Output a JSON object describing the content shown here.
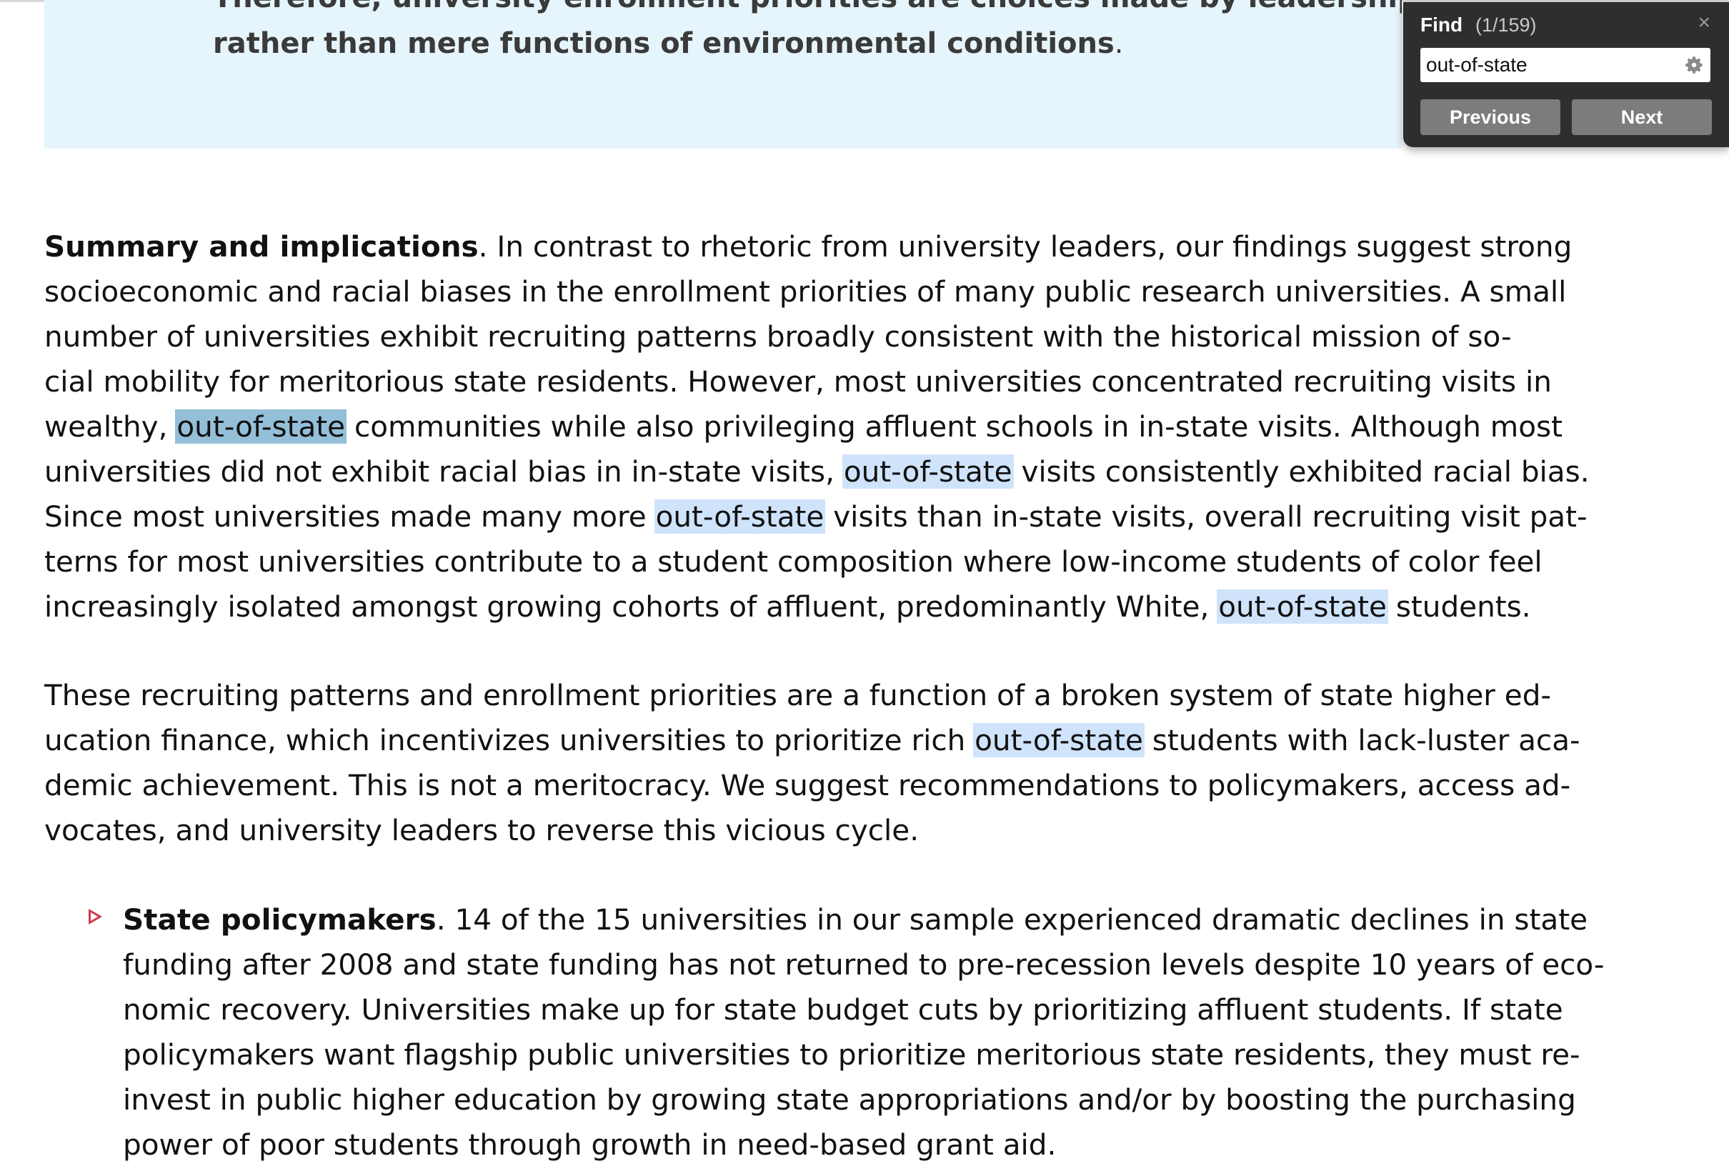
{
  "callout": {
    "line1": "Therefore, university enrollment priorities are choices made by leadership",
    "line2": "rather than mere functions of environmental conditions",
    "line2_end": "."
  },
  "paragraph1": {
    "heading": "Summary and implications",
    "lines": [
      [
        ". In contrast to rhetoric from university leaders, our findings suggest strong"
      ],
      [
        "socioeconomic and racial biases in the enrollment priorities of many public research universities. A small"
      ],
      [
        "number of universities exhibit recruiting patterns broadly consistent with the historical mission of so-"
      ],
      [
        "cial mobility for meritorious state residents. However, most universities concentrated recruiting visits in"
      ],
      [
        "wealthy, ",
        "out-of-state",
        " communities while also privileging affluent schools in in-state visits. Although most"
      ],
      [
        "universities did not exhibit racial bias in in-state visits, ",
        "out-of-state",
        " visits consistently exhibited racial bias."
      ],
      [
        "Since most universities made many more ",
        "out-of-state",
        " visits than in-state visits, overall recruiting visit pat-"
      ],
      [
        "terns for most universities contribute to a student composition where low-income students of color feel"
      ],
      [
        "increasingly isolated amongst growing cohorts of affluent, predominantly White, ",
        "out-of-state",
        " students."
      ]
    ]
  },
  "paragraph2": {
    "lines": [
      [
        "These recruiting patterns and enrollment priorities are a function of a broken system of state higher ed-"
      ],
      [
        "ucation finance, which incentivizes universities to prioritize rich ",
        "out-of-state",
        " students with lack-luster aca-"
      ],
      [
        "demic achievement. This is not a meritocracy. We suggest recommendations to policymakers, access ad-"
      ],
      [
        "vocates, and university leaders to reverse this vicious cycle."
      ]
    ]
  },
  "bullet1": {
    "heading": "State policymakers",
    "lines": [
      [
        ". 14 of the 15 universities in our sample experienced dramatic declines in state"
      ],
      [
        "funding after 2008 and state funding has not returned to pre-recession levels despite 10 years of eco-"
      ],
      [
        "nomic recovery. Universities make up for state budget cuts by prioritizing affluent students. If state"
      ],
      [
        "policymakers want flagship public universities to prioritize meritorious state residents, they must re-"
      ],
      [
        "invest in public higher education by growing state appropriations and/or by boosting the purchasing"
      ],
      [
        "power of poor students through growth in need-based grant aid."
      ]
    ]
  },
  "find": {
    "title": "Find",
    "count": "(1/159)",
    "query": "out-of-state",
    "previous_label": "Previous",
    "next_label": "Next",
    "close_glyph": "×",
    "gear_icon": "gear-icon",
    "close_icon": "close-icon"
  },
  "colors": {
    "callout_bg": "#e6f5fc",
    "match_highlight": "#cfe3fb",
    "current_match_highlight": "#94bfd9",
    "bullet_marker": "#d2384b",
    "find_panel_bg": "#2e2e2e",
    "find_button_bg": "#7c7c7c"
  }
}
